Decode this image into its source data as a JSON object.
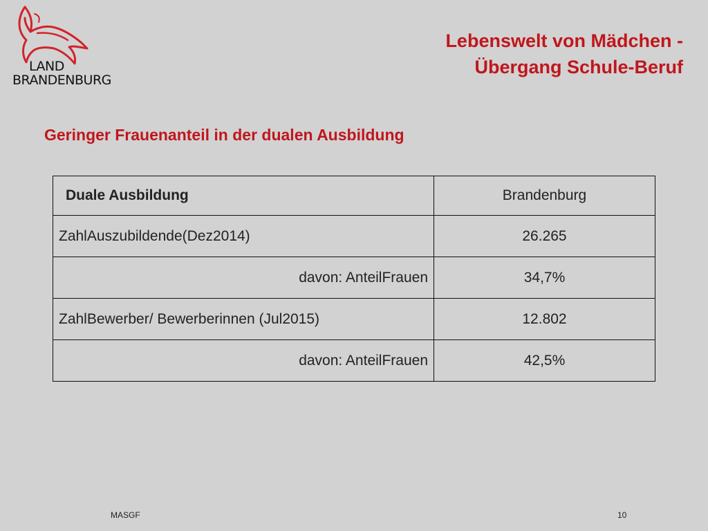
{
  "logo": {
    "line1": "LAND",
    "line2": "BRANDENBURG",
    "icon": "eagle-icon",
    "color": "#d1232a"
  },
  "header": {
    "title_line1": "Lebenswelt von Mädchen  -",
    "title_line2": "Übergang Schule-Beruf"
  },
  "subtitle": "Geringer Frauenanteil in der dualen Ausbildung",
  "table": {
    "header": {
      "label": "Duale Ausbildung",
      "value": "Brandenburg"
    },
    "rows": [
      {
        "label": "ZahlAuszubildende(Dez2014)",
        "value": "26.265"
      },
      {
        "label": "davon: AnteilFrauen",
        "value": "34,7%"
      },
      {
        "label": "ZahlBewerber/ Bewerberinnen (Jul2015)",
        "value": "12.802"
      },
      {
        "label": "davon: AnteilFrauen",
        "value": "42,5%"
      }
    ]
  },
  "footer": {
    "left": "MASGF",
    "page": "10"
  },
  "colors": {
    "accent": "#c0161c",
    "background": "#d2d2d2"
  }
}
